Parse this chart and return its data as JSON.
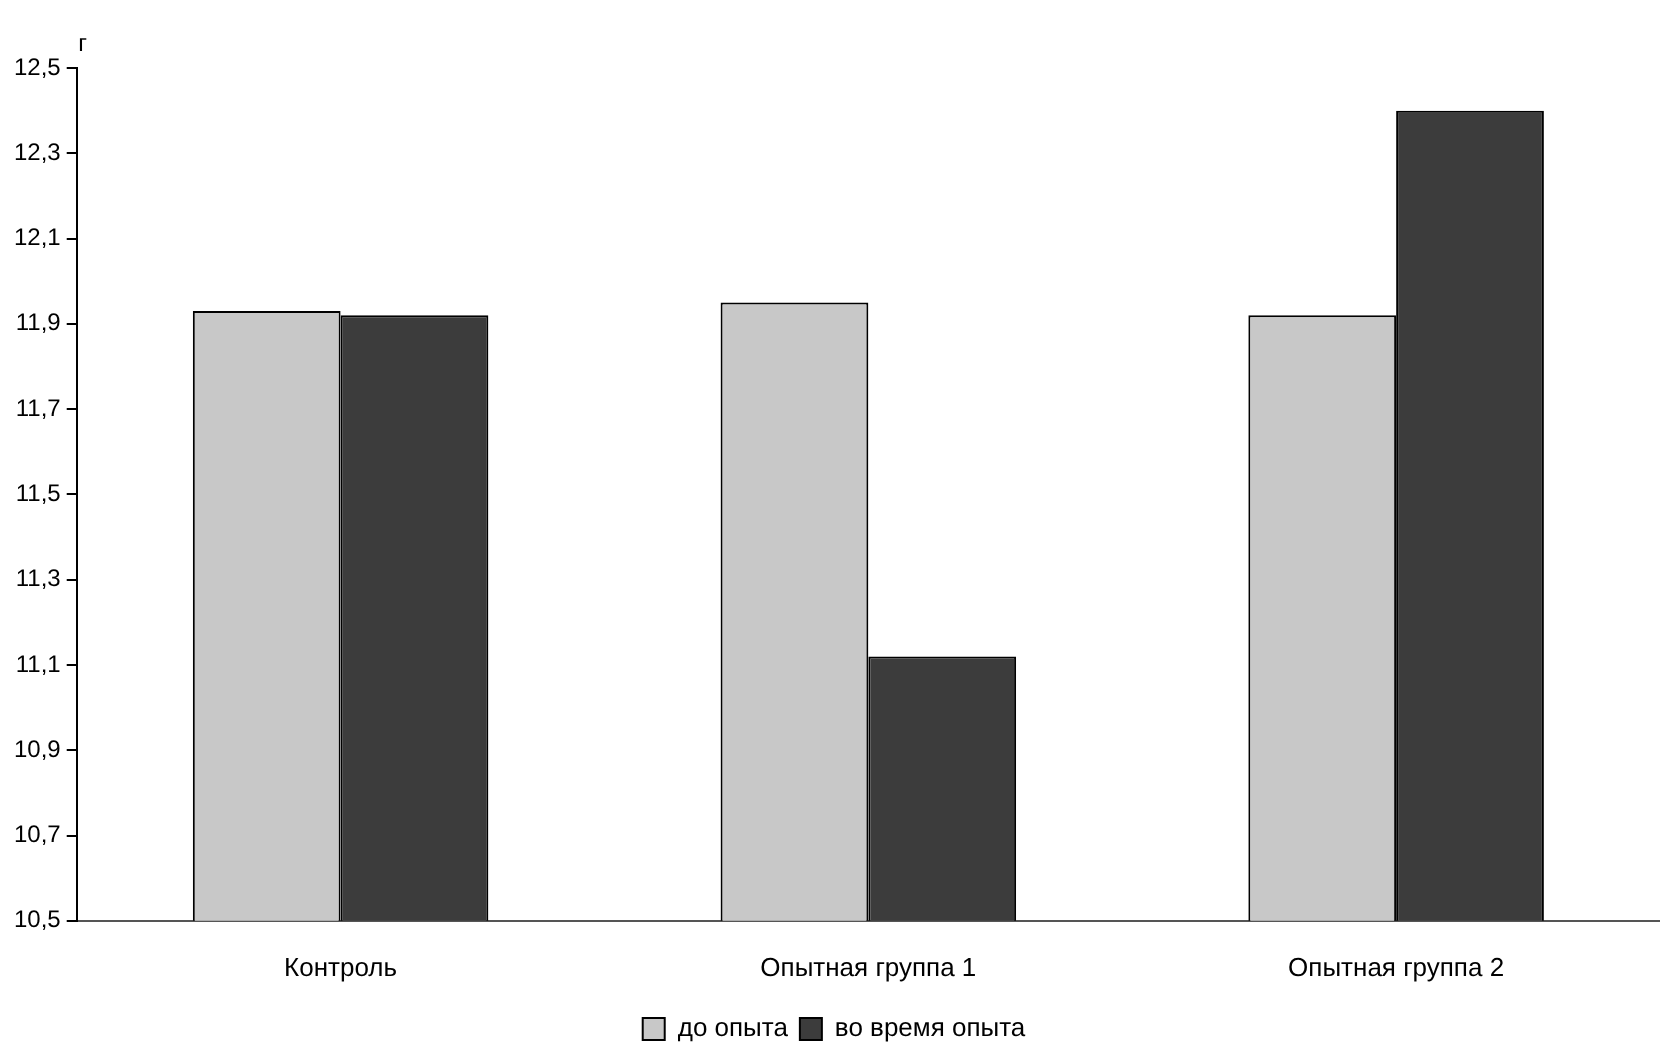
{
  "chart_data": {
    "type": "bar",
    "ylabel": "г",
    "categories": [
      "Контроль",
      "Опытная группа 1",
      "Опытная группа 2"
    ],
    "series": [
      {
        "name": "до опыта",
        "color": "#c8c8c8",
        "values": [
          11.93,
          11.95,
          11.92
        ]
      },
      {
        "name": "во время опыта",
        "color": "#3c3c3c",
        "values": [
          11.92,
          11.12,
          12.4
        ]
      }
    ],
    "ylim": [
      10.5,
      12.5
    ],
    "yticks": [
      {
        "value": 10.5,
        "label": "10,5"
      },
      {
        "value": 10.7,
        "label": "10,7"
      },
      {
        "value": 10.9,
        "label": "10,9"
      },
      {
        "value": 11.1,
        "label": "11,1"
      },
      {
        "value": 11.3,
        "label": "11,3"
      },
      {
        "value": 11.5,
        "label": "11,5"
      },
      {
        "value": 11.7,
        "label": "11,7"
      },
      {
        "value": 11.9,
        "label": "11,9"
      },
      {
        "value": 12.1,
        "label": "12,1"
      },
      {
        "value": 12.3,
        "label": "12,3"
      },
      {
        "value": 12.5,
        "label": "12,5"
      }
    ],
    "grid": false,
    "legend": "bottom"
  }
}
